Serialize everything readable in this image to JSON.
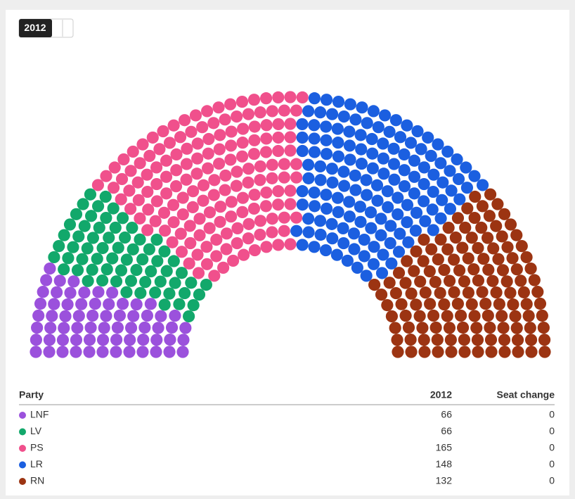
{
  "chart_data": {
    "type": "parliament",
    "tabs": [
      "2012"
    ],
    "columns": [
      "Party",
      "2012",
      "Seat change"
    ],
    "series": [
      {
        "name": "LNF",
        "color": "#9b51dc",
        "seats": 66,
        "change": 0
      },
      {
        "name": "LV",
        "color": "#12a86b",
        "seats": 66,
        "change": 0
      },
      {
        "name": "PS",
        "color": "#f0508c",
        "seats": 165,
        "change": 0
      },
      {
        "name": "LR",
        "color": "#1b5fe0",
        "seats": 148,
        "change": 0
      },
      {
        "name": "RN",
        "color": "#9c3412",
        "seats": 132,
        "change": 0
      }
    ]
  }
}
